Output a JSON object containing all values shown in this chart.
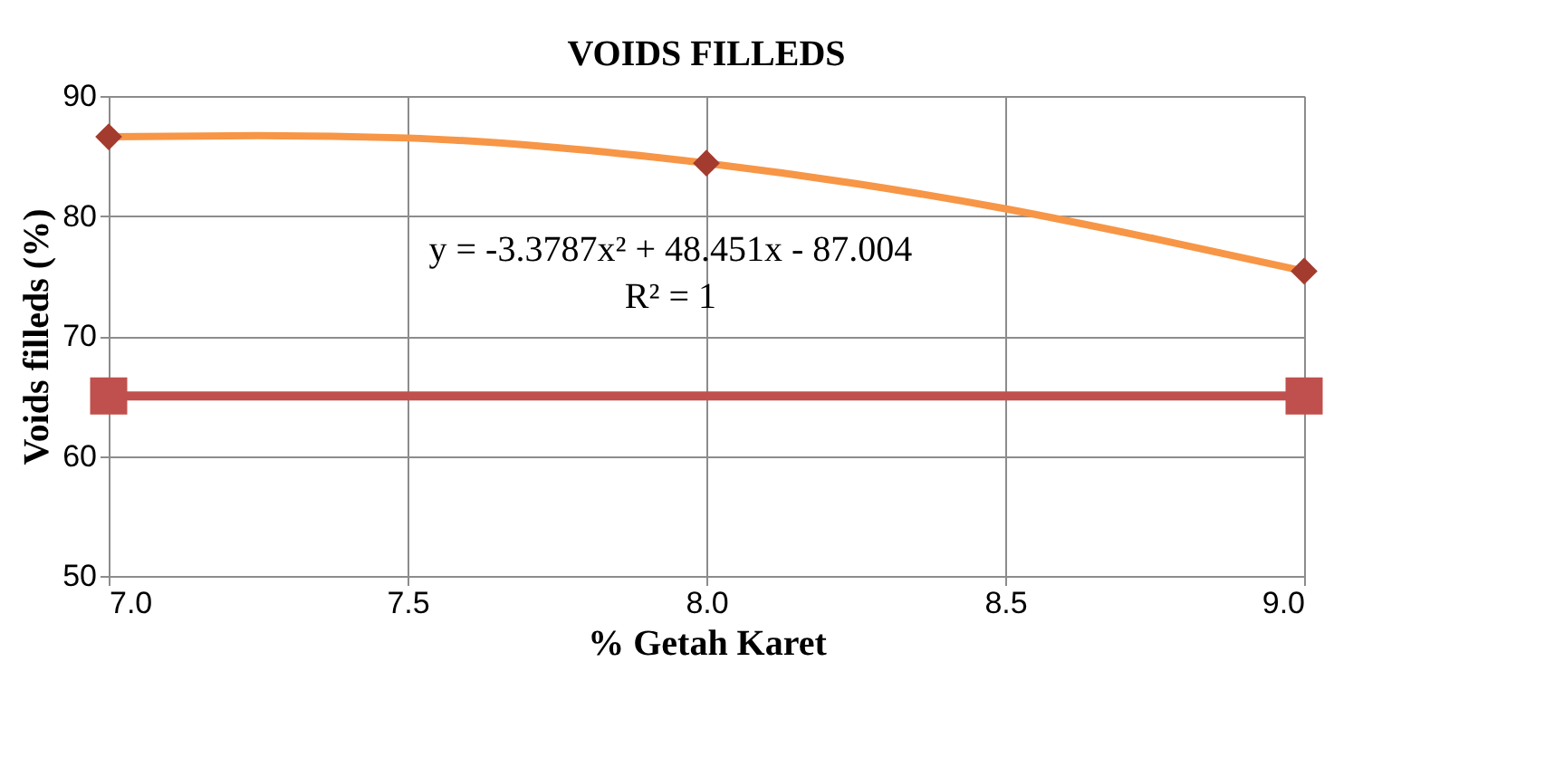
{
  "chart_data": {
    "type": "line",
    "title": "VOIDS FILLEDS",
    "xlabel": "% Getah Karet",
    "ylabel": "Voids filleds (%)",
    "xlim": [
      7,
      9
    ],
    "xticks": [
      {
        "value": 7,
        "label": "7.0"
      },
      {
        "value": 7.5,
        "label": "7.5"
      },
      {
        "value": 8,
        "label": "8.0"
      },
      {
        "value": 8.5,
        "label": "8.5"
      },
      {
        "value": 9,
        "label": "9.0"
      }
    ],
    "ylim": [
      50,
      90
    ],
    "yticks": [
      50,
      60,
      70,
      80,
      90
    ],
    "grid": true,
    "series": [
      {
        "color": "#f79646",
        "marker": "none",
        "x": [
          7,
          7.25,
          7.5,
          7.75,
          8,
          8.25,
          8.5,
          8.75,
          9
        ],
        "values": [
          86.6,
          86.7,
          86.5,
          85.7,
          84.4,
          82.7,
          80.6,
          78.1,
          75.4
        ]
      },
      {
        "color": "#c0504d",
        "marker": "square",
        "x": [
          7,
          9
        ],
        "values": [
          65,
          65
        ]
      },
      {
        "type": "scatter",
        "color": "#a33b2e",
        "marker": "diamond",
        "x": [
          7,
          8,
          9
        ],
        "values": [
          86.6,
          84.4,
          75.4
        ]
      }
    ],
    "annotations": [
      "y = -3.3787x² + 48.451x - 87.004",
      "R² = 1"
    ]
  }
}
